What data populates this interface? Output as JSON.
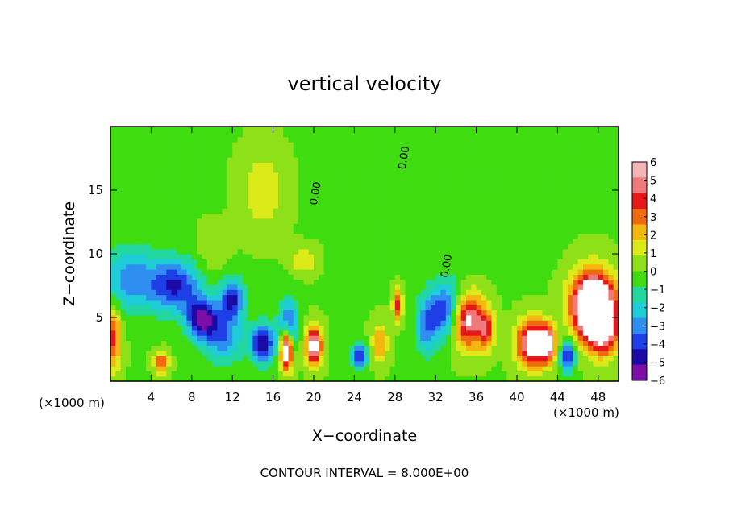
{
  "chart_data": {
    "type": "heatmap",
    "title": "vertical velocity",
    "xlabel": "X−coordinate",
    "ylabel": "Z−coordinate",
    "x_unit_left": "(×1000 m)",
    "x_unit_right": "(×1000 m)",
    "xlim": [
      0,
      50
    ],
    "ylim": [
      0,
      20
    ],
    "x_ticks": [
      4,
      8,
      12,
      16,
      20,
      24,
      28,
      32,
      36,
      40,
      44,
      48
    ],
    "x_tick_labels": [
      "4",
      "8",
      "12",
      "16",
      "20",
      "24",
      "28",
      "32",
      "36",
      "40",
      "44",
      "48"
    ],
    "y_ticks": [
      5,
      10,
      15
    ],
    "y_tick_labels": [
      "5",
      "10",
      "15"
    ],
    "colorbar": {
      "range": [
        -6,
        6
      ],
      "levels": [
        -6,
        -5,
        -4,
        -3,
        -2,
        -1,
        0,
        1,
        2,
        3,
        4,
        5,
        6
      ],
      "labels": [
        "6",
        "5",
        "4",
        "3",
        "2",
        "1",
        "0",
        "−1",
        "−2",
        "−3",
        "−4",
        "−5",
        "−6"
      ],
      "colors": [
        "#7a0ea6",
        "#1c0aa8",
        "#1e3ee6",
        "#2f8ff0",
        "#1ecdd8",
        "#22d89e",
        "#3fdc10",
        "#8ee018",
        "#dcea1a",
        "#f3b80f",
        "#f06a10",
        "#e81818",
        "#f07a7a",
        "#f5b5b5"
      ]
    },
    "contour_label": "0.00",
    "features": [
      {
        "x": 2,
        "z": 8,
        "w": -3.2,
        "sx": 3,
        "sz": 2.5
      },
      {
        "x": 6.5,
        "z": 7.5,
        "w": -4.5,
        "sx": 2.5,
        "sz": 2
      },
      {
        "x": 9,
        "z": 5,
        "w": -5.5,
        "sx": 1.5,
        "sz": 1.5
      },
      {
        "x": 12,
        "z": 6.5,
        "w": -5,
        "sx": 1.2,
        "sz": 1.5
      },
      {
        "x": 11,
        "z": 3.5,
        "w": -3.5,
        "sx": 2,
        "sz": 2
      },
      {
        "x": 15,
        "z": 3,
        "w": -5.5,
        "sx": 1.2,
        "sz": 1.5
      },
      {
        "x": 17.3,
        "z": 2.5,
        "w": 8,
        "sx": 0.6,
        "sz": 1.6
      },
      {
        "x": 17.5,
        "z": 4.5,
        "w": -4,
        "sx": 1,
        "sz": 2
      },
      {
        "x": 20,
        "z": 2.8,
        "w": 7,
        "sx": 0.8,
        "sz": 1.5
      },
      {
        "x": 24.5,
        "z": 2,
        "w": -5,
        "sx": 0.8,
        "sz": 0.9
      },
      {
        "x": 26.5,
        "z": 3,
        "w": 3,
        "sx": 0.8,
        "sz": 1.5
      },
      {
        "x": 28.3,
        "z": 6,
        "w": 4,
        "sx": 0.5,
        "sz": 1.2
      },
      {
        "x": 31,
        "z": 4,
        "w": -2.5,
        "sx": 1,
        "sz": 2
      },
      {
        "x": 33.5,
        "z": 5.5,
        "w": -6,
        "sx": 2.3,
        "sz": 2.3
      },
      {
        "x": 35,
        "z": 5,
        "w": 9,
        "sx": 1.7,
        "sz": 2.2
      },
      {
        "x": 37,
        "z": 4,
        "w": 3.5,
        "sx": 0.8,
        "sz": 1.5
      },
      {
        "x": 41.5,
        "z": 3,
        "w": 7,
        "sx": 1.5,
        "sz": 1.8
      },
      {
        "x": 43,
        "z": 3,
        "w": 5,
        "sx": 0.8,
        "sz": 1.5
      },
      {
        "x": 45,
        "z": 2,
        "w": -5,
        "sx": 0.7,
        "sz": 1.2
      },
      {
        "x": 47.5,
        "z": 6,
        "w": 11,
        "sx": 2,
        "sz": 2.5
      },
      {
        "x": 48.5,
        "z": 4,
        "w": 5,
        "sx": 1.5,
        "sz": 2
      },
      {
        "x": 5,
        "z": 1.5,
        "w": 4,
        "sx": 0.7,
        "sz": 0.8
      },
      {
        "x": 0.3,
        "z": 3.5,
        "w": 4,
        "sx": 0.8,
        "sz": 2.5
      },
      {
        "x": 15,
        "z": 15,
        "w": 1.8,
        "sx": 2,
        "sz": 3
      },
      {
        "x": 19,
        "z": 9.5,
        "w": 2,
        "sx": 1.2,
        "sz": 1
      },
      {
        "x": 38,
        "z": 14,
        "w": -0.7,
        "sx": 4,
        "sz": 4
      },
      {
        "x": 10,
        "z": 10,
        "w": 0.8,
        "sx": 1.5,
        "sz": 2
      }
    ],
    "footer": "CONTOUR INTERVAL =  8.000E+00"
  }
}
